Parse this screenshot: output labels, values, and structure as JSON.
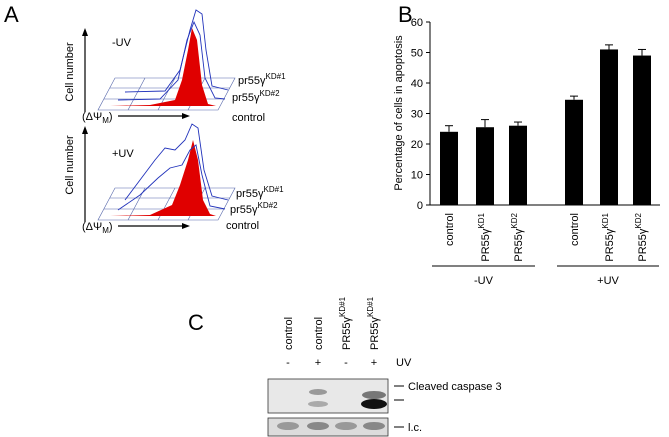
{
  "panel_labels": [
    "A",
    "B",
    "C"
  ],
  "panel_a": {
    "y_label": "Cell number",
    "x_label": {
      "base": "(ΔΨ",
      "sub": "M",
      "end": ")"
    },
    "top": {
      "condition": "-UV",
      "labels": [
        {
          "base": "pr55γ",
          "sup": "KD#1"
        },
        {
          "base": "pr55γ",
          "sup": "KD#2"
        },
        {
          "base": "control"
        }
      ]
    },
    "bottom": {
      "condition": "+UV",
      "labels": [
        {
          "base": "pr55γ",
          "sup": "KD#1"
        },
        {
          "base": "pr55γ",
          "sup": "KD#2"
        },
        {
          "base": "control"
        }
      ]
    }
  },
  "chart_data": {
    "type": "bar",
    "y_label": "Percentage of cells in apoptosis",
    "categories": [
      {
        "base": "control"
      },
      {
        "base": "PR55γ",
        "sup": "KD1"
      },
      {
        "base": "PR55γ",
        "sup": "KD2"
      },
      {
        "base": "control"
      },
      {
        "base": "PR55γ",
        "sup": "KD1"
      },
      {
        "base": "PR55γ",
        "sup": "KD2"
      }
    ],
    "groups": [
      {
        "name": "-UV",
        "size": 3
      },
      {
        "name": "+UV",
        "size": 3
      }
    ],
    "values": [
      24,
      25.5,
      26,
      34.5,
      51,
      49
    ],
    "errors": [
      2,
      2.5,
      1.2,
      1.2,
      1.5,
      2
    ],
    "color": "#000000",
    "ylim": [
      0,
      60
    ],
    "yticks": [
      0,
      10,
      20,
      30,
      40,
      50,
      60
    ],
    "grid": false
  },
  "panel_c": {
    "lanes": [
      {
        "base": "control"
      },
      {
        "base": "control"
      },
      {
        "base": "PR55γ",
        "sup": "KD#1"
      },
      {
        "base": "PR55γ",
        "sup": "KD#1"
      }
    ],
    "uv_signs": [
      "-",
      "+",
      "-",
      "+"
    ],
    "uv_label": "UV",
    "band_labels": [
      "Cleaved caspase 3",
      "l.c."
    ]
  }
}
